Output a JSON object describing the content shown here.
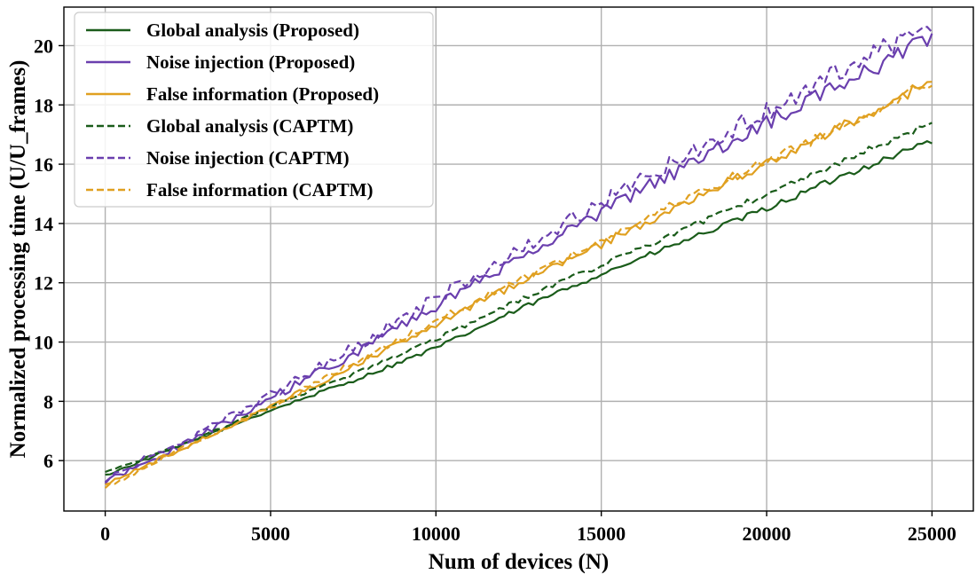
{
  "chart_data": {
    "type": "line",
    "title": "",
    "xlabel": "Num of devices (N)",
    "ylabel": "Normalized processing time (U/U_frames)",
    "xlim": [
      -1250,
      26250
    ],
    "ylim": [
      4.3,
      21.3
    ],
    "xticks": [
      0,
      5000,
      10000,
      15000,
      20000,
      25000
    ],
    "xtick_labels": [
      "0",
      "5000",
      "10000",
      "15000",
      "20000",
      "25000"
    ],
    "yticks": [
      6,
      8,
      10,
      12,
      14,
      16,
      18,
      20
    ],
    "ytick_labels": [
      "6",
      "8",
      "10",
      "12",
      "14",
      "16",
      "18",
      "20"
    ],
    "grid": true,
    "legend_position": "upper-left",
    "x": [
      0,
      2500,
      5000,
      7500,
      10000,
      12500,
      15000,
      17500,
      20000,
      22500,
      25000
    ],
    "series": [
      {
        "name": "Global analysis (Proposed)",
        "color": "#1a5c1a",
        "dash": "solid",
        "noise": 0.08,
        "values": [
          5.5,
          6.6,
          7.7,
          8.7,
          9.8,
          11.1,
          12.3,
          13.4,
          14.5,
          15.7,
          16.8
        ]
      },
      {
        "name": "Noise injection (Proposed)",
        "color": "#6a3fae",
        "dash": "solid",
        "noise": 0.2,
        "values": [
          5.3,
          6.6,
          8.1,
          9.6,
          11.2,
          12.8,
          14.4,
          15.9,
          17.4,
          18.8,
          20.3
        ]
      },
      {
        "name": "False information (Proposed)",
        "color": "#e0a020",
        "dash": "solid",
        "noise": 0.13,
        "values": [
          5.2,
          6.5,
          7.8,
          9.2,
          10.6,
          12.0,
          13.3,
          14.7,
          16.0,
          17.4,
          18.8
        ]
      },
      {
        "name": "Global analysis (CAPTM)",
        "color": "#1a5c1a",
        "dash": "dashed",
        "noise": 0.08,
        "values": [
          5.6,
          6.6,
          7.8,
          8.9,
          10.1,
          11.4,
          12.6,
          13.8,
          15.0,
          16.2,
          17.4
        ]
      },
      {
        "name": "Noise injection (CAPTM)",
        "color": "#6a3fae",
        "dash": "dashed",
        "noise": 0.25,
        "values": [
          5.4,
          6.7,
          8.2,
          9.8,
          11.5,
          13.1,
          14.7,
          16.3,
          17.8,
          19.3,
          20.7
        ]
      },
      {
        "name": "False information (CAPTM)",
        "color": "#e0a020",
        "dash": "dashed",
        "noise": 0.13,
        "values": [
          5.1,
          6.5,
          7.8,
          9.3,
          10.7,
          12.1,
          13.4,
          14.8,
          16.1,
          17.4,
          18.8
        ]
      }
    ]
  }
}
